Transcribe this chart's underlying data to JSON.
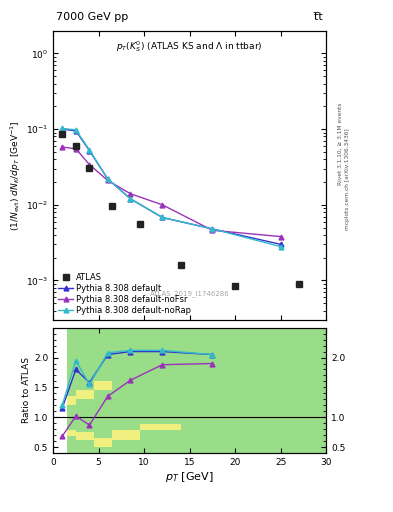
{
  "title_top": "7000 GeV pp",
  "title_top_right": "t̅t",
  "plot_title": "p_{T}(K^{0}_{S}) (ATLAS KS and \\Lambda in ttbar)",
  "xlabel": "p_{T} [GeV]",
  "ylabel_main": "(1/N_{evt}) dN_{K}/dp_{T} [GeV^{-1}]",
  "ylabel_ratio": "Ratio to ATLAS",
  "watermark": "ATLAS_2019_I1746286",
  "right_label1": "Rivet 3.1.10, ≥ 3.1M events",
  "right_label2": "mcplots.cern.ch [arXiv:1306.3436]",
  "atlas_x": [
    1.0,
    2.5,
    4.0,
    6.5,
    9.5,
    14.0,
    20.0,
    27.0
  ],
  "atlas_y": [
    0.085,
    0.06,
    0.031,
    0.0095,
    0.0055,
    0.0016,
    0.00085,
    0.0009
  ],
  "py_default_x": [
    1.0,
    2.5,
    4.0,
    6.0,
    8.5,
    12.0,
    17.5,
    25.0
  ],
  "py_default_y": [
    0.1,
    0.095,
    0.052,
    0.022,
    0.012,
    0.0068,
    0.0048,
    0.003
  ],
  "py_noFsr_x": [
    1.0,
    2.5,
    4.0,
    6.0,
    8.5,
    12.0,
    17.5,
    25.0
  ],
  "py_noFsr_y": [
    0.058,
    0.055,
    0.034,
    0.021,
    0.014,
    0.01,
    0.0046,
    0.0038
  ],
  "py_noRap_x": [
    1.0,
    2.5,
    4.0,
    6.0,
    8.5,
    12.0,
    17.5,
    25.0
  ],
  "py_noRap_y": [
    0.102,
    0.098,
    0.053,
    0.022,
    0.012,
    0.0068,
    0.0048,
    0.0028
  ],
  "ratio_default_x": [
    1.0,
    2.5,
    4.0,
    6.0,
    8.5,
    12.0,
    17.5
  ],
  "ratio_default_y": [
    1.15,
    1.8,
    1.58,
    2.05,
    2.1,
    2.1,
    2.05
  ],
  "ratio_noFsr_x": [
    1.0,
    2.5,
    4.0,
    6.0,
    8.5,
    12.0,
    17.5
  ],
  "ratio_noFsr_y": [
    0.68,
    1.02,
    0.87,
    1.35,
    1.62,
    1.88,
    1.9
  ],
  "ratio_noRap_x": [
    1.0,
    2.5,
    4.0,
    6.0,
    8.5,
    12.0,
    17.5
  ],
  "ratio_noRap_y": [
    1.2,
    1.95,
    1.55,
    2.08,
    2.12,
    2.12,
    2.05
  ],
  "bins": [
    1.5,
    2.5,
    4.5,
    6.5,
    9.5,
    14.0,
    20.0,
    30.0
  ],
  "yellow_lo": [
    0.68,
    0.62,
    0.5,
    0.62,
    0.78,
    1.0,
    1.0
  ],
  "yellow_hi": [
    1.35,
    1.45,
    1.6,
    2.5,
    2.5,
    2.5,
    2.5
  ],
  "green_lo": [
    0.78,
    0.75,
    0.65,
    0.78,
    0.88,
    1.0,
    1.0
  ],
  "green_hi": [
    1.2,
    1.3,
    1.45,
    2.5,
    2.5,
    2.5,
    2.5
  ],
  "color_default": "#3333cc",
  "color_noFsr": "#9933bb",
  "color_noRap": "#33bbcc",
  "color_atlas": "#222222",
  "ylim_main": [
    0.0003,
    2.0
  ],
  "ylim_ratio": [
    0.4,
    2.5
  ],
  "xlim": [
    0,
    30
  ]
}
